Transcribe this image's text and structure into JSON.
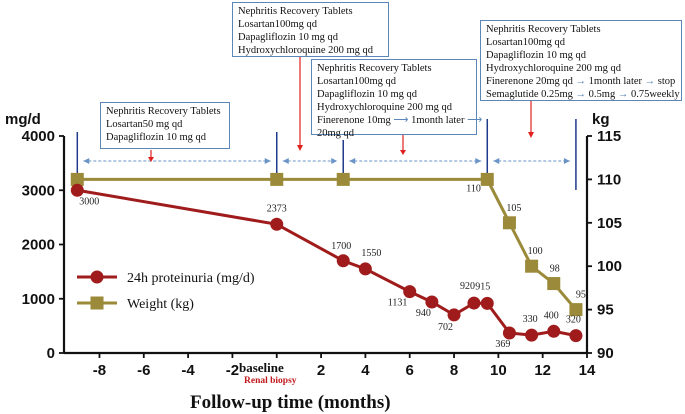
{
  "colors": {
    "proteinuria": "#a01c1c",
    "weight": "#9b8a3a",
    "timeline": "#6a93c6",
    "annotation_arrow": "#e0201c",
    "marker_line": "#1f3a8a",
    "baseline_note": "#c0181c"
  },
  "axes": {
    "left_unit": "mg/d",
    "right_unit": "kg",
    "x_title": "Follow-up time (months)",
    "baseline_label": "baseline",
    "baseline_note": "Renal biopsy",
    "x_ticks": [
      "-8",
      "-6",
      "-4",
      "-2",
      "2",
      "4",
      "6",
      "8",
      "10",
      "12",
      "14"
    ],
    "y_left_ticks": [
      "0",
      "1000",
      "2000",
      "3000",
      "4000"
    ],
    "y_right_ticks": [
      "90",
      "95",
      "100",
      "105",
      "110",
      "115"
    ]
  },
  "legend": {
    "proteinuria": "24h proteinuria (mg/d)",
    "weight": "Weight (kg)"
  },
  "boxes": {
    "b1": {
      "title": "Nephritis Recovery Tablets",
      "line1": "Losartan50 mg qd",
      "line2": "Dapagliflozin 10 mg qd"
    },
    "b2": {
      "title": "Nephritis Recovery Tablets",
      "line1": "Losartan100mg qd",
      "line2": "Dapagliflozin 10 mg qd",
      "line3": "Hydroxychloroquine 200 mg qd"
    },
    "b3": {
      "title": "Nephritis Recovery Tablets",
      "line1": "Losartan100mg qd",
      "line2": "Dapagliflozin 10 mg qd",
      "line3": "Hydroxychloroquine 200 mg qd",
      "line4a": "Finerenone 10mg",
      "line4b": "1month later",
      "line5": "20mg qd"
    },
    "b4": {
      "title": "Nephritis Recovery Tablets",
      "line1": "Losartan100mg qd",
      "line2": "Dapagliflozin 10 mg qd",
      "line3": "Hydroxychloroquine 200 mg qd",
      "line4a": "Finerenone 20mg qd",
      "line4b": "1month later",
      "line4c": "stop",
      "line5a": "Semaglutide 0.25mg",
      "line5b": "0.5mg",
      "line5c": "0.75weekly"
    }
  },
  "chart_data": {
    "type": "line",
    "x_label": "Follow-up time (months)",
    "x_range": [
      -9.6,
      14
    ],
    "x_ticks": [
      -8,
      -6,
      -4,
      -2,
      0,
      2,
      4,
      6,
      8,
      10,
      12,
      14
    ],
    "y_left": {
      "unit": "mg/d",
      "range": [
        0,
        4000
      ],
      "ticks": [
        0,
        1000,
        2000,
        3000,
        4000
      ]
    },
    "y_right": {
      "unit": "kg",
      "range": [
        90,
        115
      ],
      "ticks": [
        90,
        95,
        100,
        105,
        110,
        115
      ]
    },
    "series": [
      {
        "name": "24h proteinuria (mg/d)",
        "axis": "left",
        "marker": "circle",
        "points": [
          {
            "x": -9,
            "y": 3000,
            "label": "3000"
          },
          {
            "x": 0,
            "y": 2373,
            "label": "2373"
          },
          {
            "x": 3,
            "y": 1700,
            "label": "1700"
          },
          {
            "x": 4,
            "y": 1550,
            "label": "1550"
          },
          {
            "x": 6,
            "y": 1131,
            "label": "1131"
          },
          {
            "x": 7,
            "y": 940,
            "label": "940"
          },
          {
            "x": 8,
            "y": 702,
            "label": "702"
          },
          {
            "x": 8.9,
            "y": 920,
            "label": "920"
          },
          {
            "x": 9.5,
            "y": 915,
            "label": "915"
          },
          {
            "x": 10.5,
            "y": 369,
            "label": "369"
          },
          {
            "x": 11.5,
            "y": 330,
            "label": "330"
          },
          {
            "x": 12.5,
            "y": 400,
            "label": "400"
          },
          {
            "x": 13.5,
            "y": 320,
            "label": "320"
          }
        ]
      },
      {
        "name": "Weight (kg)",
        "axis": "right",
        "marker": "square",
        "points": [
          {
            "x": -9,
            "y": 110,
            "label": ""
          },
          {
            "x": 0,
            "y": 110,
            "label": ""
          },
          {
            "x": 3,
            "y": 110,
            "label": ""
          },
          {
            "x": 9.5,
            "y": 110,
            "label": "110"
          },
          {
            "x": 10.5,
            "y": 105,
            "label": "105"
          },
          {
            "x": 11.5,
            "y": 100,
            "label": "100"
          },
          {
            "x": 12.5,
            "y": 98,
            "label": "98"
          },
          {
            "x": 13.5,
            "y": 95,
            "label": "95"
          }
        ]
      }
    ],
    "phase_markers": [
      -9,
      0,
      3,
      9.5,
      13.5
    ]
  }
}
